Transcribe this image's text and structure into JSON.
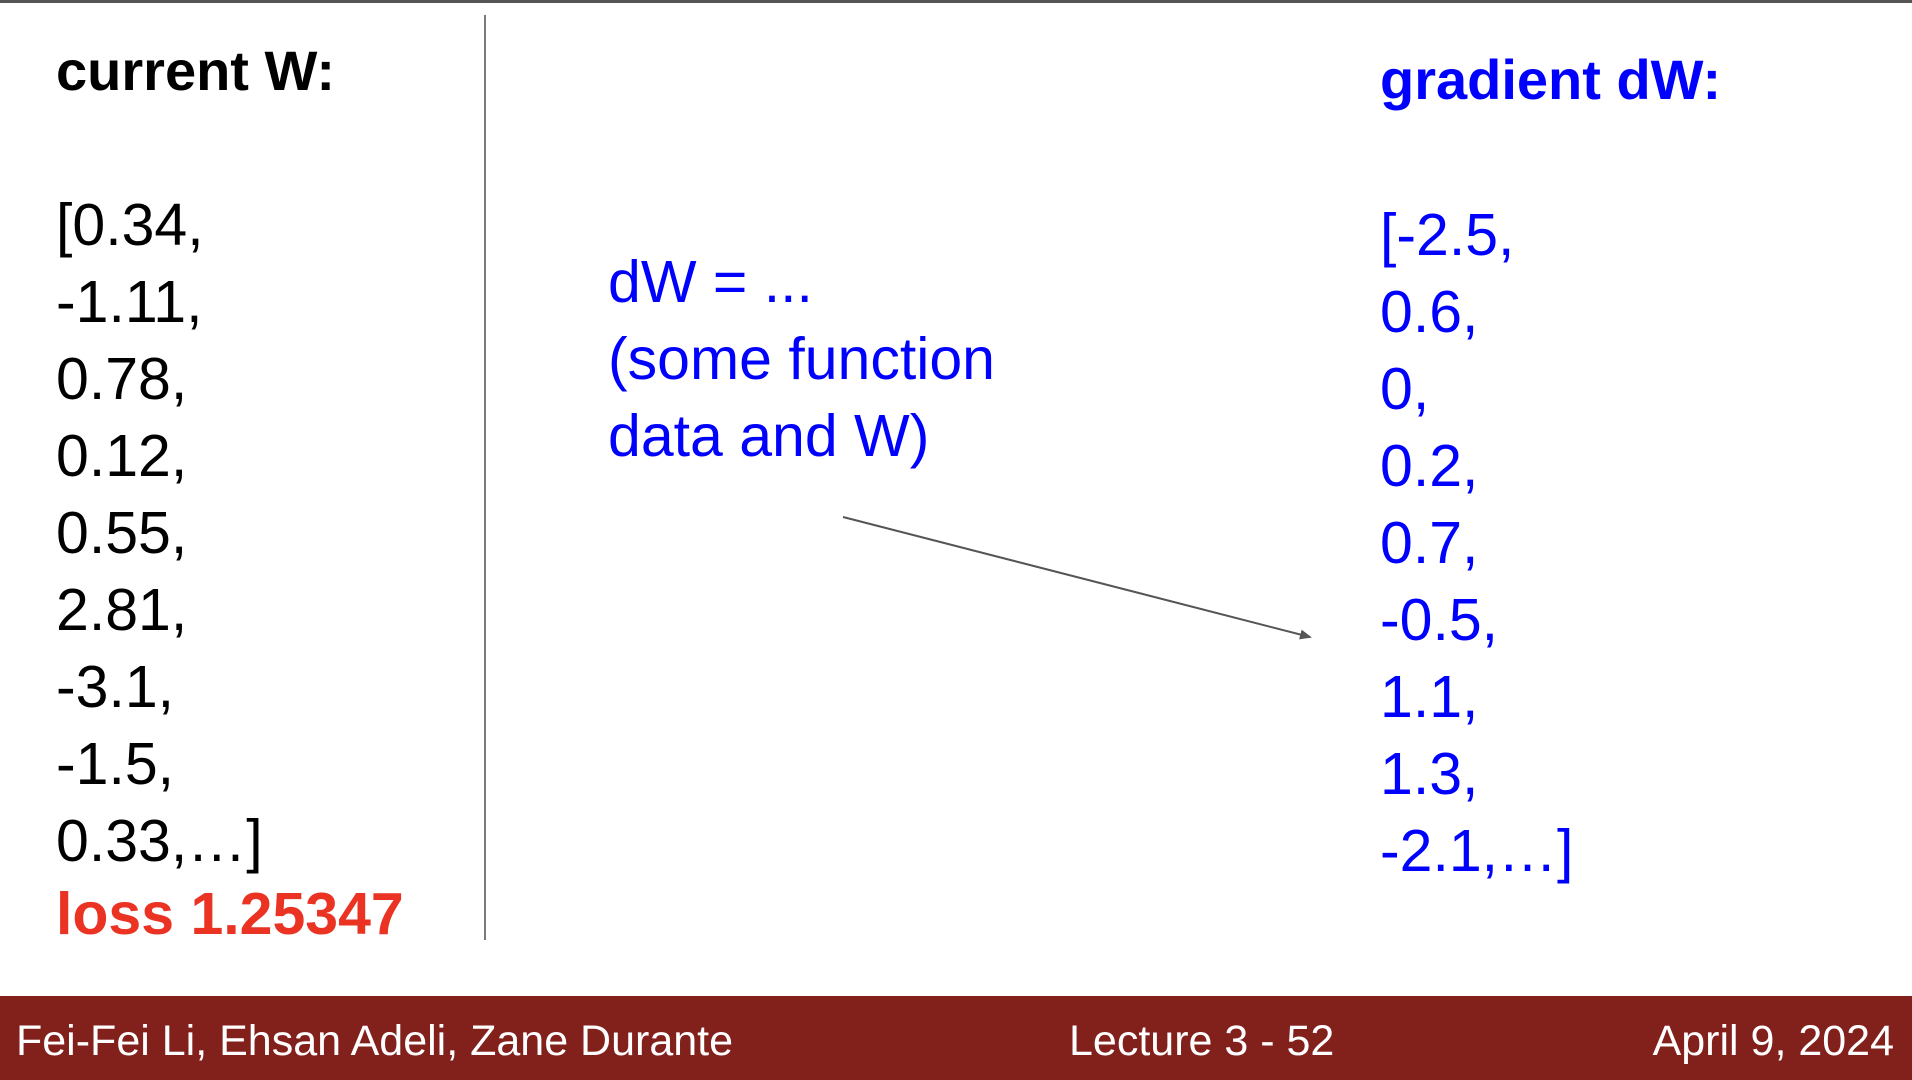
{
  "left_panel": {
    "heading": "current W:",
    "values": [
      "[0.34,",
      "-1.11,",
      "0.78,",
      "0.12,",
      "0.55,",
      "2.81,",
      "-3.1,",
      "-1.5,",
      "0.33,…]"
    ],
    "loss": "loss 1.25347"
  },
  "middle": {
    "formula_lines": [
      "dW = ...",
      "(some function",
      "data and W)"
    ]
  },
  "right_panel": {
    "heading": "gradient dW:",
    "values": [
      "[-2.5,",
      "0.6,",
      "0,",
      "0.2,",
      "0.7,",
      "-0.5,",
      "1.1,",
      "1.3,",
      "-2.1,…]"
    ]
  },
  "footer": {
    "authors": "Fei-Fei Li, Ehsan Adeli, Zane Durante",
    "lecture": "Lecture 3 -   52",
    "date": "April 9, 2024"
  },
  "colors": {
    "accent_blue": "#0000ff",
    "loss_red": "#ea3323",
    "footer_bg": "#82201c"
  }
}
